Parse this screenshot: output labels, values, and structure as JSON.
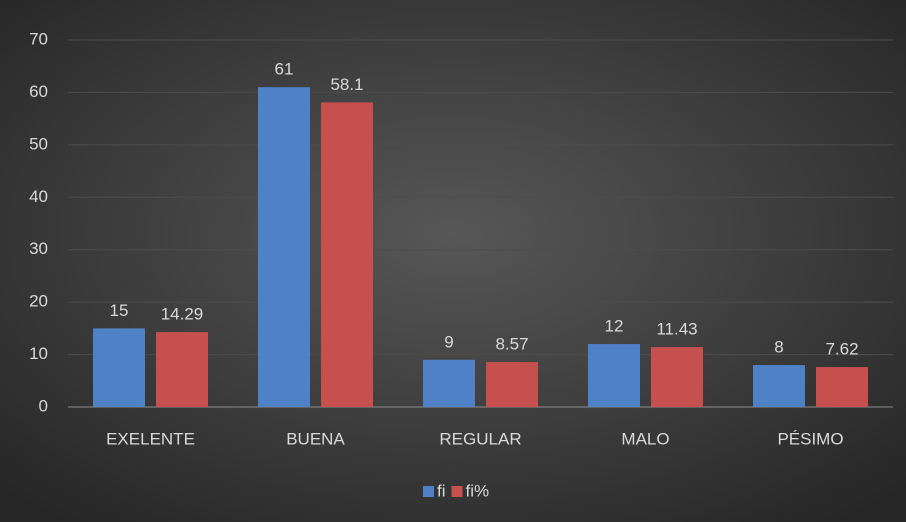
{
  "chart_data": {
    "type": "bar",
    "categories": [
      "EXELENTE",
      "BUENA",
      "REGULAR",
      "MALO",
      "PÉSIMO"
    ],
    "series": [
      {
        "name": "fi",
        "color": "#4f81c7",
        "values": [
          15,
          61,
          9,
          12,
          8
        ]
      },
      {
        "name": "fi%",
        "color": "#c5504d",
        "values": [
          14.29,
          58.1,
          8.57,
          11.43,
          7.62
        ]
      }
    ],
    "ylim": [
      0,
      70
    ],
    "yticks": [
      0,
      10,
      20,
      30,
      40,
      50,
      60,
      70
    ],
    "grid": true,
    "legend": "bottom"
  }
}
